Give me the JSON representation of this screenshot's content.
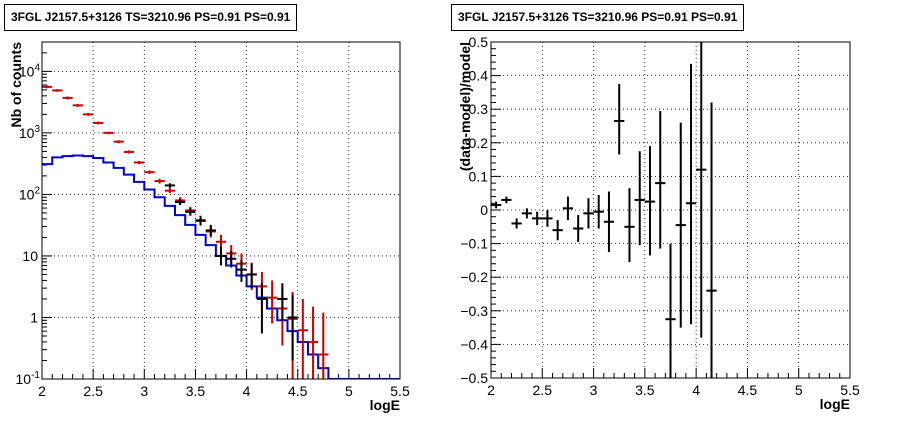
{
  "chart_data": [
    {
      "type": "histogram",
      "title": "3FGL J2157.5+3126 TS=3210.96 PS=0.91 PS=0.91",
      "xlabel": "logE",
      "ylabel": "Nb of counts",
      "xlim": [
        2,
        5.5
      ],
      "ylim": [
        0.1,
        30000
      ],
      "ylog": true,
      "grid": true,
      "x_ticks": [
        "2",
        "2.5",
        "3",
        "3.5",
        "4",
        "4.5",
        "5",
        "5.5"
      ],
      "y_ticks": [
        {
          "value": 0.1,
          "base": "10",
          "exp": "-1"
        },
        {
          "value": 1,
          "base": "1",
          "exp": ""
        },
        {
          "value": 10,
          "base": "10",
          "exp": ""
        },
        {
          "value": 100,
          "base": "10",
          "exp": "2"
        },
        {
          "value": 1000,
          "base": "10",
          "exp": "3"
        },
        {
          "value": 10000,
          "base": "10",
          "exp": "4"
        }
      ],
      "bin_edges": [
        2.0,
        2.1,
        2.2,
        2.3,
        2.4,
        2.5,
        2.6,
        2.7,
        2.8,
        2.9,
        3.0,
        3.1,
        3.2,
        3.3,
        3.4,
        3.5,
        3.6,
        3.7,
        3.8,
        3.9,
        4.0,
        4.1,
        4.2,
        4.3,
        4.4,
        4.5,
        4.6,
        4.7,
        4.8,
        4.9,
        5.0,
        5.1,
        5.2,
        5.3,
        5.4,
        5.5
      ],
      "series": [
        {
          "role": "model_step",
          "color": "#0000cc",
          "values": [
            310,
            400,
            420,
            430,
            420,
            390,
            330,
            270,
            210,
            160,
            120,
            90,
            65,
            46,
            32,
            22,
            15,
            10,
            7,
            4.8,
            3.2,
            2.1,
            1.4,
            0.9,
            0.6,
            0.4,
            0.25,
            0.15,
            0.1,
            0.1,
            0.1,
            0.1,
            0.1,
            0.1,
            0.1
          ]
        },
        {
          "role": "total_model",
          "color": "#cc0000",
          "points": [
            {
              "x": 2.05,
              "y": 5600,
              "lo": 5300,
              "hi": 5900
            },
            {
              "x": 2.15,
              "y": 4900,
              "lo": 4650,
              "hi": 5150
            },
            {
              "x": 2.25,
              "y": 3700,
              "lo": 3500,
              "hi": 3900
            },
            {
              "x": 2.35,
              "y": 2800,
              "lo": 2650,
              "hi": 2950
            },
            {
              "x": 2.45,
              "y": 2000,
              "lo": 1900,
              "hi": 2100
            },
            {
              "x": 2.55,
              "y": 1450,
              "lo": 1370,
              "hi": 1530
            },
            {
              "x": 2.65,
              "y": 1000,
              "lo": 950,
              "hi": 1050
            },
            {
              "x": 2.75,
              "y": 720,
              "lo": 680,
              "hi": 760
            },
            {
              "x": 2.85,
              "y": 490,
              "lo": 460,
              "hi": 520
            },
            {
              "x": 2.95,
              "y": 330,
              "lo": 310,
              "hi": 350
            },
            {
              "x": 3.05,
              "y": 230,
              "lo": 215,
              "hi": 245
            },
            {
              "x": 3.15,
              "y": 165,
              "lo": 150,
              "hi": 180
            },
            {
              "x": 3.25,
              "y": 115,
              "lo": 105,
              "hi": 127
            },
            {
              "x": 3.35,
              "y": 80,
              "lo": 71,
              "hi": 90
            },
            {
              "x": 3.45,
              "y": 55,
              "lo": 48,
              "hi": 63
            },
            {
              "x": 3.55,
              "y": 37,
              "lo": 31,
              "hi": 44
            },
            {
              "x": 3.65,
              "y": 25,
              "lo": 20,
              "hi": 31
            },
            {
              "x": 3.75,
              "y": 17,
              "lo": 13,
              "hi": 22
            },
            {
              "x": 3.85,
              "y": 11,
              "lo": 7.5,
              "hi": 15
            },
            {
              "x": 3.95,
              "y": 7.5,
              "lo": 4.5,
              "hi": 11
            },
            {
              "x": 4.05,
              "y": 5,
              "lo": 2.8,
              "hi": 7.8
            },
            {
              "x": 4.15,
              "y": 3.2,
              "lo": 1.5,
              "hi": 5.5
            },
            {
              "x": 4.25,
              "y": 2.1,
              "lo": 0.8,
              "hi": 4
            },
            {
              "x": 4.35,
              "y": 1.4,
              "lo": 0.35,
              "hi": 3.1
            },
            {
              "x": 4.45,
              "y": 0.95,
              "lo": 0.1,
              "hi": 2.6
            },
            {
              "x": 4.55,
              "y": 0.62,
              "lo": 0.1,
              "hi": 2.0
            },
            {
              "x": 4.65,
              "y": 0.4,
              "lo": 0.1,
              "hi": 1.5
            },
            {
              "x": 4.75,
              "y": 0.25,
              "lo": 0.1,
              "hi": 1.2
            }
          ]
        },
        {
          "role": "data",
          "color": "#000000",
          "points": [
            {
              "x": 3.25,
              "y": 140,
              "lo": 128,
              "hi": 152
            },
            {
              "x": 3.35,
              "y": 75,
              "lo": 67,
              "hi": 84
            },
            {
              "x": 3.45,
              "y": 52,
              "lo": 45,
              "hi": 60
            },
            {
              "x": 3.55,
              "y": 38,
              "lo": 32,
              "hi": 45
            },
            {
              "x": 3.65,
              "y": 26,
              "lo": 21,
              "hi": 32
            },
            {
              "x": 3.75,
              "y": 10,
              "lo": 7,
              "hi": 14
            },
            {
              "x": 3.85,
              "y": 9,
              "lo": 6.5,
              "hi": 12
            },
            {
              "x": 3.95,
              "y": 6,
              "lo": 3.8,
              "hi": 8.5
            },
            {
              "x": 4.05,
              "y": 5,
              "lo": 3,
              "hi": 7.5
            },
            {
              "x": 4.15,
              "y": 2,
              "lo": 0.55,
              "hi": 3.6
            },
            {
              "x": 4.35,
              "y": 2,
              "lo": 0.9,
              "hi": 3.6
            },
            {
              "x": 4.45,
              "y": 1,
              "lo": 0.2,
              "hi": 2.3
            }
          ]
        }
      ]
    },
    {
      "type": "scatter",
      "title": "3FGL J2157.5+3126 TS=3210.96 PS=0.91 PS=0.91",
      "xlabel": "logE",
      "ylabel": "(data-model)/model",
      "xlim": [
        2,
        5.5
      ],
      "ylim": [
        -0.5,
        0.5
      ],
      "grid": true,
      "x_ticks": [
        "2",
        "2.5",
        "3",
        "3.5",
        "4",
        "4.5",
        "5",
        "5.5"
      ],
      "y_ticks": [
        "−0.5",
        "−0.4",
        "−0.3",
        "−0.2",
        "−0.1",
        "0",
        "0.1",
        "0.2",
        "0.3",
        "0.4",
        "0.5"
      ],
      "series": [
        {
          "role": "residuals",
          "color": "#000000",
          "points": [
            {
              "x": 2.05,
              "y": 0.015,
              "lo": 0.005,
              "hi": 0.025
            },
            {
              "x": 2.15,
              "y": 0.03,
              "lo": 0.02,
              "hi": 0.04
            },
            {
              "x": 2.25,
              "y": -0.04,
              "lo": -0.055,
              "hi": -0.025
            },
            {
              "x": 2.35,
              "y": -0.01,
              "lo": -0.025,
              "hi": 0.005
            },
            {
              "x": 2.45,
              "y": -0.025,
              "lo": -0.045,
              "hi": -0.005
            },
            {
              "x": 2.55,
              "y": -0.025,
              "lo": -0.05,
              "hi": 0.0
            },
            {
              "x": 2.65,
              "y": -0.06,
              "lo": -0.09,
              "hi": -0.03
            },
            {
              "x": 2.75,
              "y": 0.005,
              "lo": -0.03,
              "hi": 0.04
            },
            {
              "x": 2.85,
              "y": -0.055,
              "lo": -0.095,
              "hi": -0.015
            },
            {
              "x": 2.95,
              "y": -0.01,
              "lo": -0.055,
              "hi": 0.035
            },
            {
              "x": 3.05,
              "y": -0.005,
              "lo": -0.055,
              "hi": 0.045
            },
            {
              "x": 3.15,
              "y": -0.035,
              "lo": -0.125,
              "hi": 0.055
            },
            {
              "x": 3.25,
              "y": 0.265,
              "lo": 0.165,
              "hi": 0.375
            },
            {
              "x": 3.35,
              "y": -0.05,
              "lo": -0.155,
              "hi": 0.065
            },
            {
              "x": 3.45,
              "y": 0.03,
              "lo": -0.105,
              "hi": 0.175
            },
            {
              "x": 3.55,
              "y": 0.025,
              "lo": -0.135,
              "hi": 0.19
            },
            {
              "x": 3.65,
              "y": 0.08,
              "lo": -0.115,
              "hi": 0.295
            },
            {
              "x": 3.75,
              "y": -0.325,
              "lo": -0.5,
              "hi": -0.1
            },
            {
              "x": 3.85,
              "y": -0.045,
              "lo": -0.35,
              "hi": 0.26
            },
            {
              "x": 3.95,
              "y": 0.02,
              "lo": -0.34,
              "hi": 0.435
            },
            {
              "x": 4.05,
              "y": 0.12,
              "lo": -0.38,
              "hi": 0.5
            },
            {
              "x": 4.15,
              "y": -0.24,
              "lo": -0.5,
              "hi": 0.32
            }
          ]
        }
      ]
    }
  ]
}
